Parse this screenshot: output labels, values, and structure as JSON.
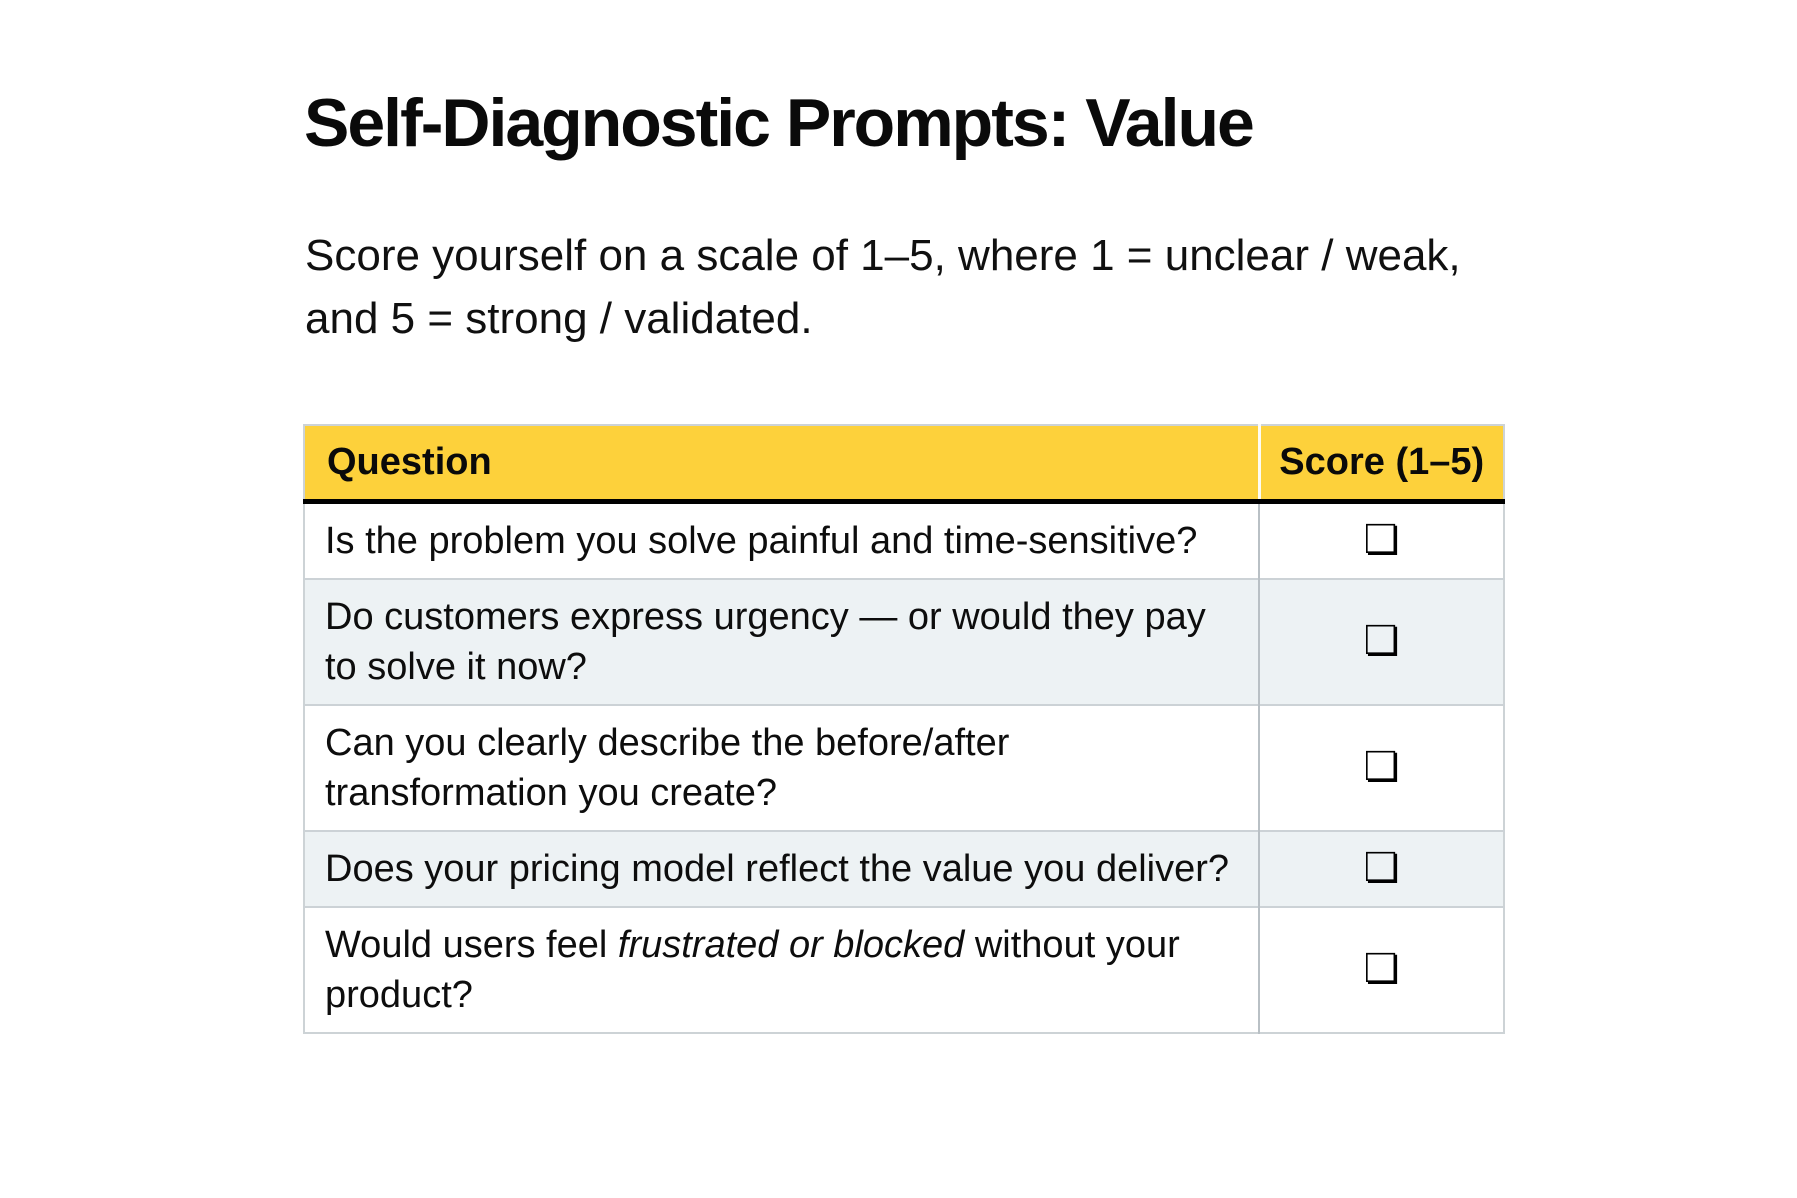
{
  "page": {
    "title": "Self-Diagnostic Prompts: Value",
    "subtitle_lines": [
      "Score yourself on a scale of 1–5, where 1 = unclear / weak,",
      "and 5 = strong / validated."
    ]
  },
  "colors": {
    "header_bg": "#FDD13B",
    "row_alt_bg": "#EDF2F4"
  },
  "icons": {
    "checkbox_glyph": "❏"
  },
  "table": {
    "columns": [
      "Question",
      "Score (1–5)"
    ],
    "rows": [
      {
        "text_before": "Is the problem you solve painful and time-sensitive?",
        "text_italic": "",
        "text_after": "",
        "score": ""
      },
      {
        "text_before": "Do customers express urgency — or would they pay to solve it now?",
        "text_italic": "",
        "text_after": "",
        "score": ""
      },
      {
        "text_before": "Can you clearly describe the before/after transformation you create?",
        "text_italic": "",
        "text_after": "",
        "score": ""
      },
      {
        "text_before": "Does your pricing model reflect the value you deliver?",
        "text_italic": "",
        "text_after": "",
        "score": ""
      },
      {
        "text_before": "Would users feel ",
        "text_italic": "frustrated or blocked",
        "text_after": " without your product?",
        "score": ""
      }
    ]
  }
}
